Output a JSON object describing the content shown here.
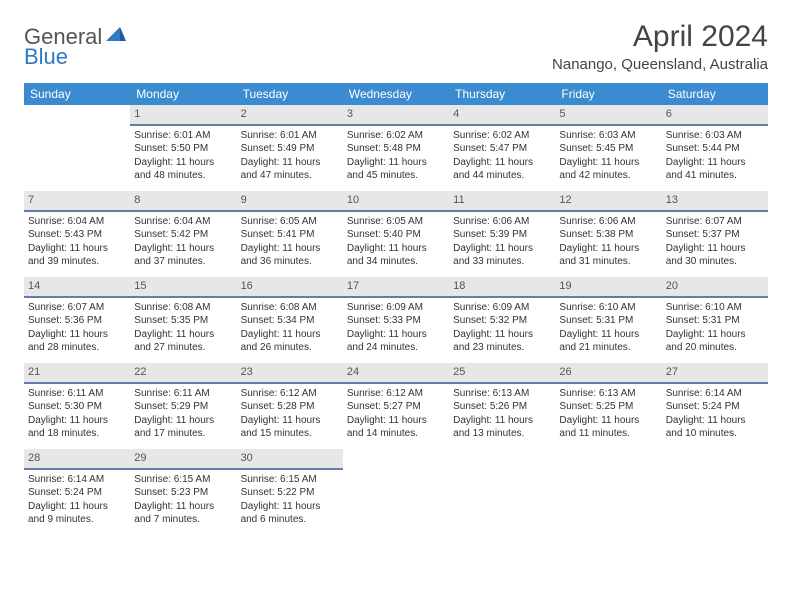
{
  "logo": {
    "part1": "General",
    "part2": "Blue"
  },
  "title": "April 2024",
  "subtitle": "Nanango, Queensland, Australia",
  "colors": {
    "header_bg": "#3b8bd0",
    "header_text": "#ffffff",
    "daynum_bg": "#e7e7e7",
    "daynum_border": "#5f7fa8",
    "body_text": "#333333",
    "logo_gray": "#555555",
    "logo_blue": "#2f78c4"
  },
  "weekdays": [
    "Sunday",
    "Monday",
    "Tuesday",
    "Wednesday",
    "Thursday",
    "Friday",
    "Saturday"
  ],
  "weeks": [
    [
      {
        "n": "",
        "l1": "",
        "l2": "",
        "l3": "",
        "l4": "",
        "empty": true
      },
      {
        "n": "1",
        "l1": "Sunrise: 6:01 AM",
        "l2": "Sunset: 5:50 PM",
        "l3": "Daylight: 11 hours",
        "l4": "and 48 minutes."
      },
      {
        "n": "2",
        "l1": "Sunrise: 6:01 AM",
        "l2": "Sunset: 5:49 PM",
        "l3": "Daylight: 11 hours",
        "l4": "and 47 minutes."
      },
      {
        "n": "3",
        "l1": "Sunrise: 6:02 AM",
        "l2": "Sunset: 5:48 PM",
        "l3": "Daylight: 11 hours",
        "l4": "and 45 minutes."
      },
      {
        "n": "4",
        "l1": "Sunrise: 6:02 AM",
        "l2": "Sunset: 5:47 PM",
        "l3": "Daylight: 11 hours",
        "l4": "and 44 minutes."
      },
      {
        "n": "5",
        "l1": "Sunrise: 6:03 AM",
        "l2": "Sunset: 5:45 PM",
        "l3": "Daylight: 11 hours",
        "l4": "and 42 minutes."
      },
      {
        "n": "6",
        "l1": "Sunrise: 6:03 AM",
        "l2": "Sunset: 5:44 PM",
        "l3": "Daylight: 11 hours",
        "l4": "and 41 minutes."
      }
    ],
    [
      {
        "n": "7",
        "l1": "Sunrise: 6:04 AM",
        "l2": "Sunset: 5:43 PM",
        "l3": "Daylight: 11 hours",
        "l4": "and 39 minutes."
      },
      {
        "n": "8",
        "l1": "Sunrise: 6:04 AM",
        "l2": "Sunset: 5:42 PM",
        "l3": "Daylight: 11 hours",
        "l4": "and 37 minutes."
      },
      {
        "n": "9",
        "l1": "Sunrise: 6:05 AM",
        "l2": "Sunset: 5:41 PM",
        "l3": "Daylight: 11 hours",
        "l4": "and 36 minutes."
      },
      {
        "n": "10",
        "l1": "Sunrise: 6:05 AM",
        "l2": "Sunset: 5:40 PM",
        "l3": "Daylight: 11 hours",
        "l4": "and 34 minutes."
      },
      {
        "n": "11",
        "l1": "Sunrise: 6:06 AM",
        "l2": "Sunset: 5:39 PM",
        "l3": "Daylight: 11 hours",
        "l4": "and 33 minutes."
      },
      {
        "n": "12",
        "l1": "Sunrise: 6:06 AM",
        "l2": "Sunset: 5:38 PM",
        "l3": "Daylight: 11 hours",
        "l4": "and 31 minutes."
      },
      {
        "n": "13",
        "l1": "Sunrise: 6:07 AM",
        "l2": "Sunset: 5:37 PM",
        "l3": "Daylight: 11 hours",
        "l4": "and 30 minutes."
      }
    ],
    [
      {
        "n": "14",
        "l1": "Sunrise: 6:07 AM",
        "l2": "Sunset: 5:36 PM",
        "l3": "Daylight: 11 hours",
        "l4": "and 28 minutes."
      },
      {
        "n": "15",
        "l1": "Sunrise: 6:08 AM",
        "l2": "Sunset: 5:35 PM",
        "l3": "Daylight: 11 hours",
        "l4": "and 27 minutes."
      },
      {
        "n": "16",
        "l1": "Sunrise: 6:08 AM",
        "l2": "Sunset: 5:34 PM",
        "l3": "Daylight: 11 hours",
        "l4": "and 26 minutes."
      },
      {
        "n": "17",
        "l1": "Sunrise: 6:09 AM",
        "l2": "Sunset: 5:33 PM",
        "l3": "Daylight: 11 hours",
        "l4": "and 24 minutes."
      },
      {
        "n": "18",
        "l1": "Sunrise: 6:09 AM",
        "l2": "Sunset: 5:32 PM",
        "l3": "Daylight: 11 hours",
        "l4": "and 23 minutes."
      },
      {
        "n": "19",
        "l1": "Sunrise: 6:10 AM",
        "l2": "Sunset: 5:31 PM",
        "l3": "Daylight: 11 hours",
        "l4": "and 21 minutes."
      },
      {
        "n": "20",
        "l1": "Sunrise: 6:10 AM",
        "l2": "Sunset: 5:31 PM",
        "l3": "Daylight: 11 hours",
        "l4": "and 20 minutes."
      }
    ],
    [
      {
        "n": "21",
        "l1": "Sunrise: 6:11 AM",
        "l2": "Sunset: 5:30 PM",
        "l3": "Daylight: 11 hours",
        "l4": "and 18 minutes."
      },
      {
        "n": "22",
        "l1": "Sunrise: 6:11 AM",
        "l2": "Sunset: 5:29 PM",
        "l3": "Daylight: 11 hours",
        "l4": "and 17 minutes."
      },
      {
        "n": "23",
        "l1": "Sunrise: 6:12 AM",
        "l2": "Sunset: 5:28 PM",
        "l3": "Daylight: 11 hours",
        "l4": "and 15 minutes."
      },
      {
        "n": "24",
        "l1": "Sunrise: 6:12 AM",
        "l2": "Sunset: 5:27 PM",
        "l3": "Daylight: 11 hours",
        "l4": "and 14 minutes."
      },
      {
        "n": "25",
        "l1": "Sunrise: 6:13 AM",
        "l2": "Sunset: 5:26 PM",
        "l3": "Daylight: 11 hours",
        "l4": "and 13 minutes."
      },
      {
        "n": "26",
        "l1": "Sunrise: 6:13 AM",
        "l2": "Sunset: 5:25 PM",
        "l3": "Daylight: 11 hours",
        "l4": "and 11 minutes."
      },
      {
        "n": "27",
        "l1": "Sunrise: 6:14 AM",
        "l2": "Sunset: 5:24 PM",
        "l3": "Daylight: 11 hours",
        "l4": "and 10 minutes."
      }
    ],
    [
      {
        "n": "28",
        "l1": "Sunrise: 6:14 AM",
        "l2": "Sunset: 5:24 PM",
        "l3": "Daylight: 11 hours",
        "l4": "and 9 minutes."
      },
      {
        "n": "29",
        "l1": "Sunrise: 6:15 AM",
        "l2": "Sunset: 5:23 PM",
        "l3": "Daylight: 11 hours",
        "l4": "and 7 minutes."
      },
      {
        "n": "30",
        "l1": "Sunrise: 6:15 AM",
        "l2": "Sunset: 5:22 PM",
        "l3": "Daylight: 11 hours",
        "l4": "and 6 minutes."
      },
      {
        "n": "",
        "l1": "",
        "l2": "",
        "l3": "",
        "l4": "",
        "empty": true
      },
      {
        "n": "",
        "l1": "",
        "l2": "",
        "l3": "",
        "l4": "",
        "empty": true
      },
      {
        "n": "",
        "l1": "",
        "l2": "",
        "l3": "",
        "l4": "",
        "empty": true
      },
      {
        "n": "",
        "l1": "",
        "l2": "",
        "l3": "",
        "l4": "",
        "empty": true
      }
    ]
  ]
}
